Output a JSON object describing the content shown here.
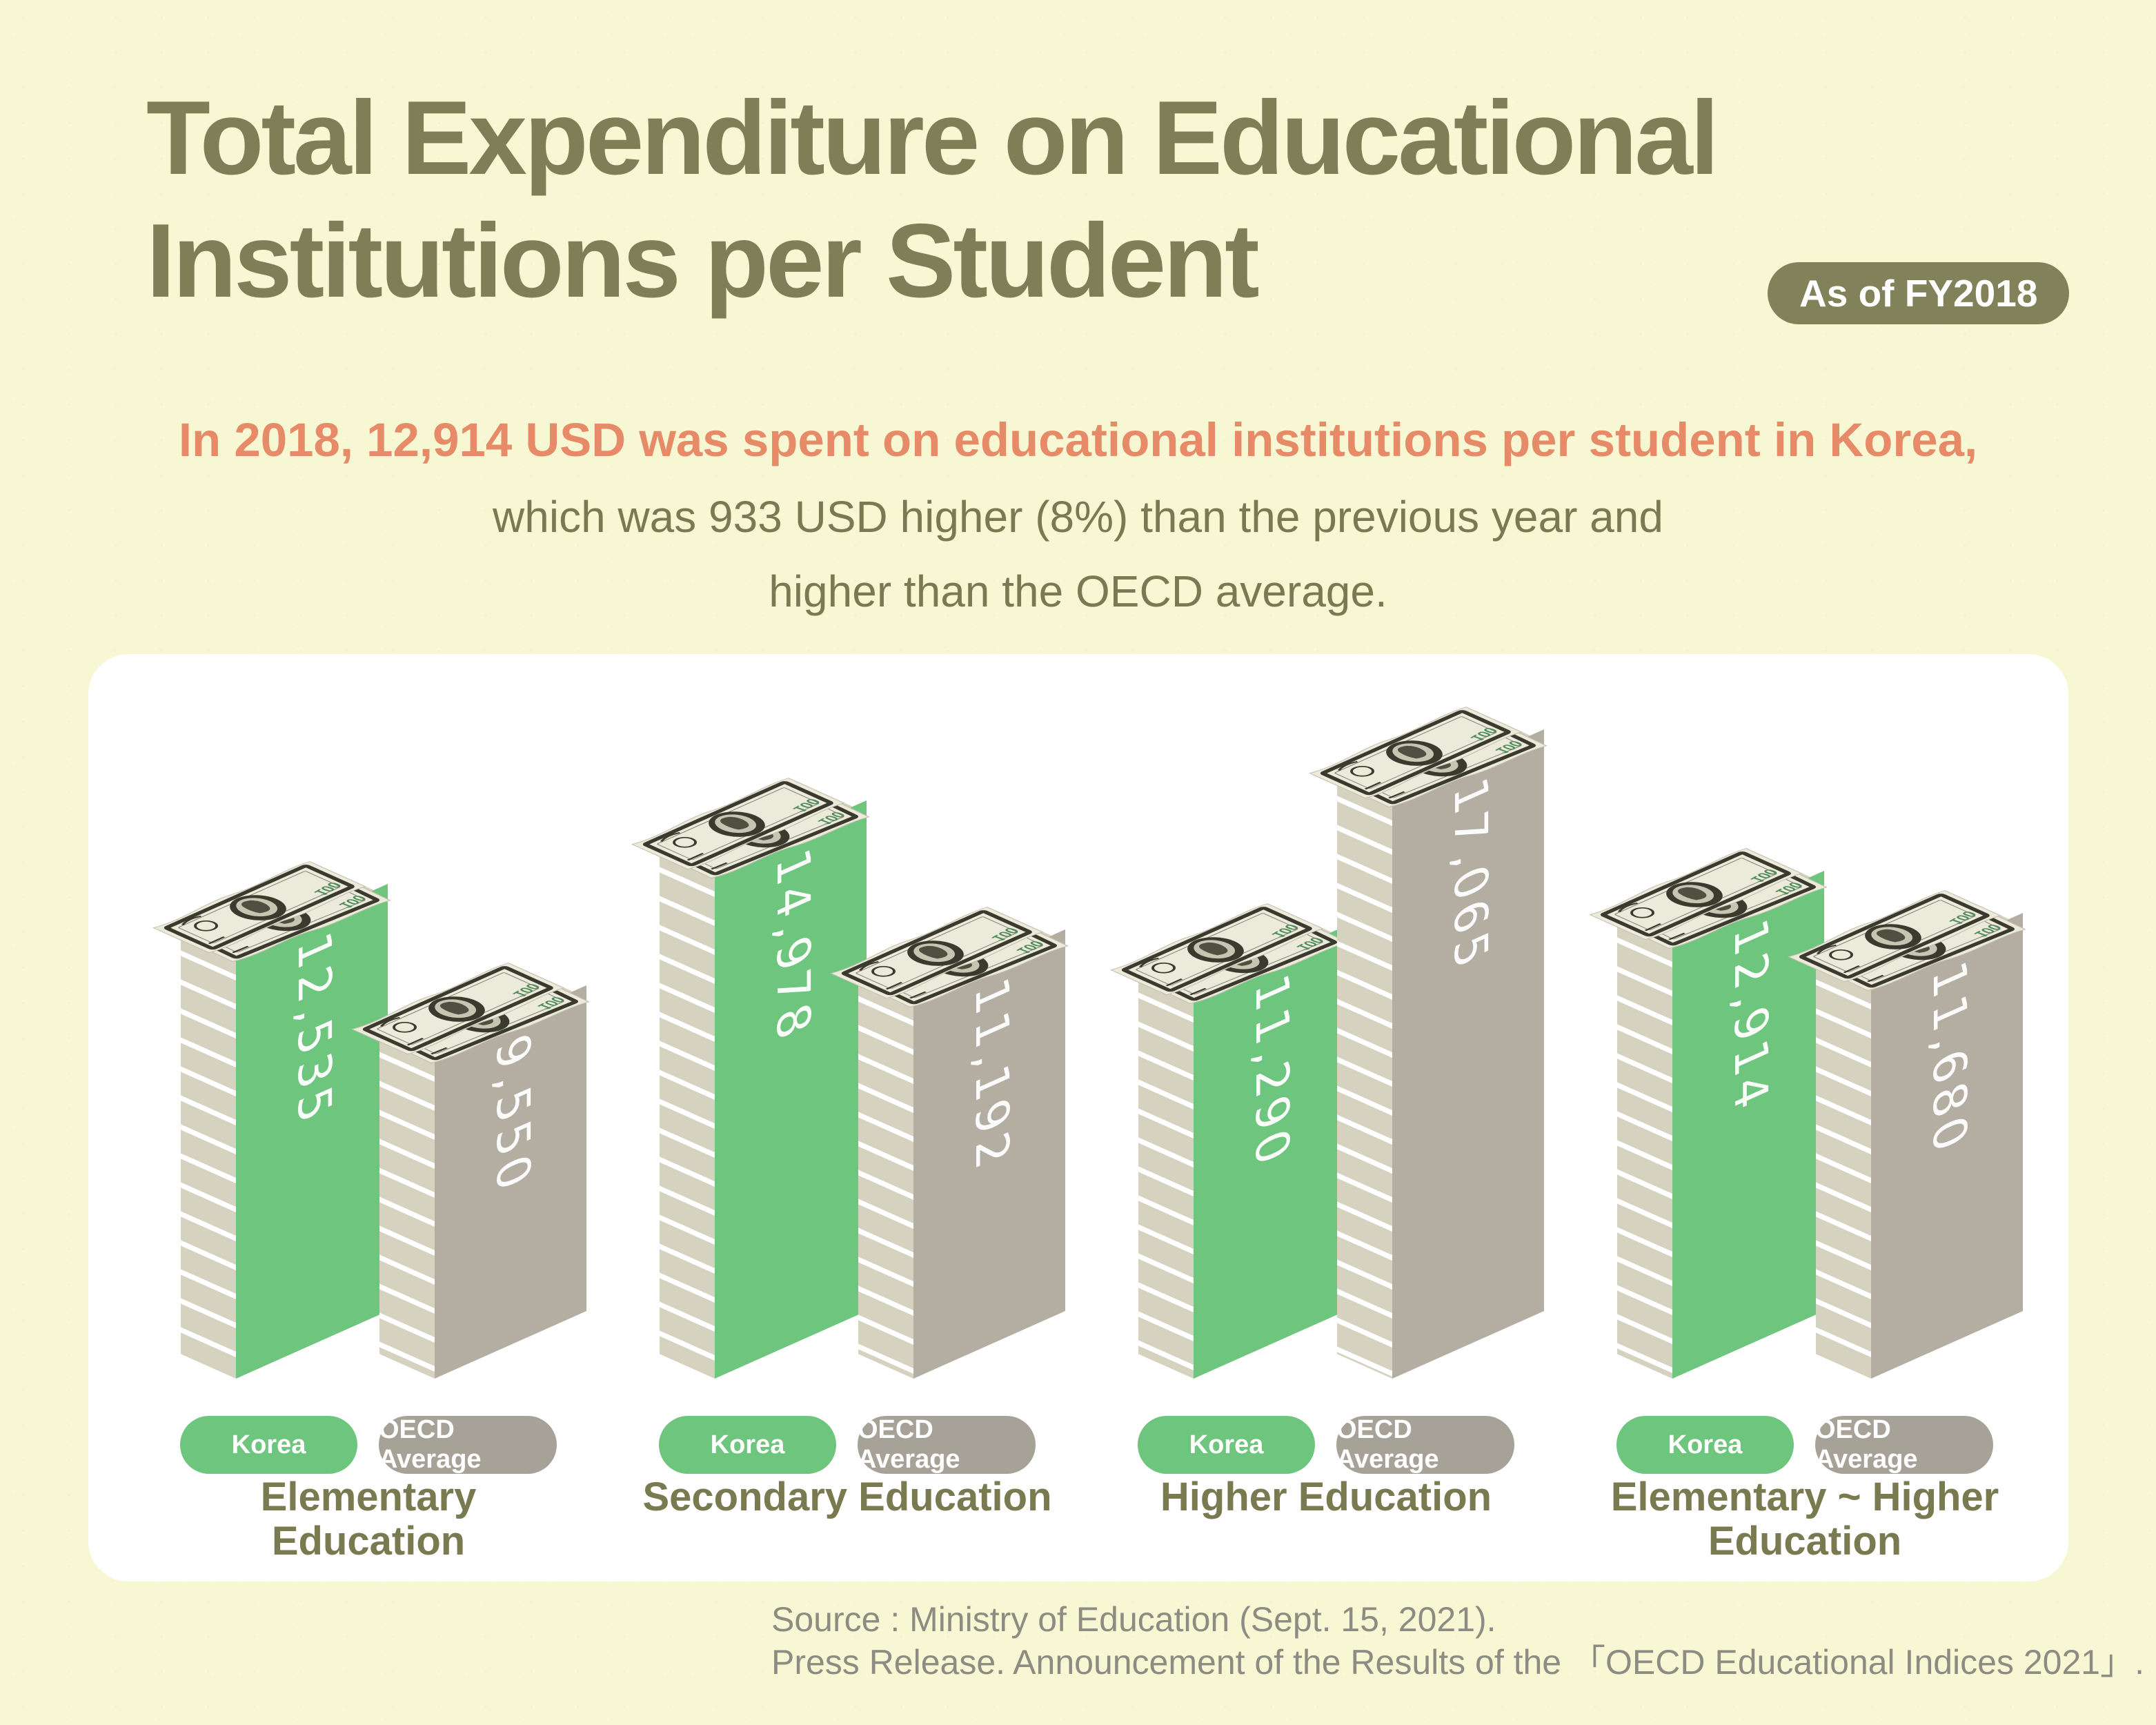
{
  "title": {
    "line1": "Total Expenditure on Educational",
    "line2": "Institutions per Student"
  },
  "badge": "As of FY2018",
  "subtitle": {
    "line1": "In 2018, 12,914 USD was spent on educational institutions per student in Korea,",
    "line2": "which was 933 USD higher (8%) than the previous year and",
    "line3": "higher than the OECD average."
  },
  "source": {
    "line1": "Source : Ministry of Education (Sept. 15, 2021).",
    "line2": "Press Release. Announcement of the Results of the 「OECD Educational Indices 2021」."
  },
  "bill_label": "100",
  "colors": {
    "background": "#f7f7d4",
    "card": "#ffffff",
    "title_olive": "#7e7e57",
    "badge_bg": "#82825a",
    "accent_orange": "#e78a67",
    "body_olive": "#7a7a52",
    "korea_green": "#6ec57d",
    "oecd_gray": "#b3ada2",
    "pill_gray": "#a7a298",
    "stripe_beige": "#d6d2c0",
    "cap_beige": "#d5d1bf",
    "label_olive": "#7a7a50",
    "source_gray": "#8c8c82",
    "bill_paper": "#eceadb",
    "bill_dark": "#3a3a2e",
    "bill_green": "#4f8c5a",
    "value_text": "#ffffff"
  },
  "chart_data": {
    "type": "bar",
    "unit": "USD",
    "title": "Total Expenditure on Educational Institutions per Student (FY2018)",
    "categories": [
      "Elementary Education",
      "Secondary Education",
      "Higher Education",
      "Elementary ~ Higher Education"
    ],
    "series": [
      {
        "name": "Korea",
        "values": [
          12535,
          14978,
          11290,
          12914
        ]
      },
      {
        "name": "OECD Average",
        "values": [
          9550,
          11192,
          17065,
          11680
        ]
      }
    ],
    "legend_position": "below-bars",
    "grid": false,
    "value_labels_on_bars": true
  }
}
